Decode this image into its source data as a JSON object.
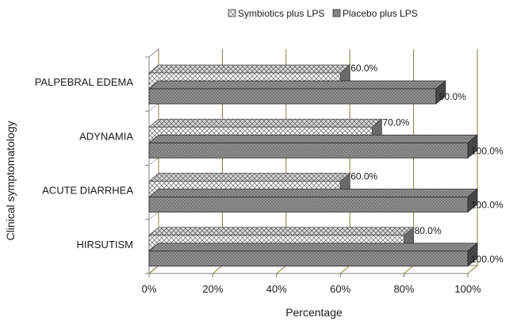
{
  "chart_data": {
    "type": "bar",
    "orientation": "horizontal",
    "style": "3d",
    "categories": [
      "PALPEBRAL EDEMA",
      "ADYNAMIA",
      "ACUTE DIARRHEA",
      "HIRSUTISM"
    ],
    "series": [
      {
        "name": "Symbiotics plus LPS",
        "values": [
          60,
          70,
          60,
          80
        ],
        "labels": [
          "60.0%",
          "70.0%",
          "60.0%",
          "80.0%"
        ],
        "pattern": "crosshatch"
      },
      {
        "name": "Placebo plus LPS",
        "values": [
          90,
          100,
          100,
          100
        ],
        "labels": [
          "90.0%",
          "100.0%",
          "100.0%",
          "100.0%"
        ],
        "pattern": "dotted"
      }
    ],
    "xlabel": "Percentage",
    "ylabel": "Clinical symptomatology",
    "xlim": [
      0,
      100
    ],
    "xticks": [
      "0%",
      "20%",
      "40%",
      "60%",
      "80%",
      "100%"
    ],
    "legend_position": "top",
    "grid": true,
    "colors": {
      "series1_fill": "#ffffff",
      "series1_stroke": "#555555",
      "series2_fill": "#8c8c8c",
      "series2_stroke": "#2f2f2f",
      "grid": "#8b7d3a"
    }
  }
}
